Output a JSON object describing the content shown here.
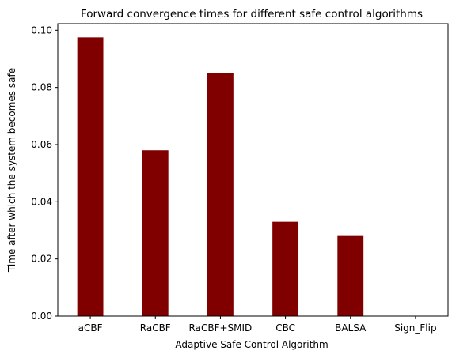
{
  "chart_data": {
    "type": "bar",
    "title": "Forward convergence times for different safe control algorithms",
    "xlabel": "Adaptive Safe Control Algorithm",
    "ylabel": "Time after which the system becomes safe",
    "categories": [
      "aCBF",
      "RaCBF",
      "RaCBF+SMID",
      "CBC",
      "BALSA",
      "Sign_Flip"
    ],
    "values": [
      0.0975,
      0.058,
      0.085,
      0.033,
      0.0283,
      0.0
    ],
    "ylim": [
      0,
      0.1023
    ],
    "yticks": [
      0.0,
      0.02,
      0.04,
      0.06,
      0.08,
      0.1
    ],
    "ytick_labels": [
      "0.00",
      "0.02",
      "0.04",
      "0.06",
      "0.08",
      "0.10"
    ],
    "bar_color": "#800000",
    "grid": false,
    "legend": "none"
  }
}
